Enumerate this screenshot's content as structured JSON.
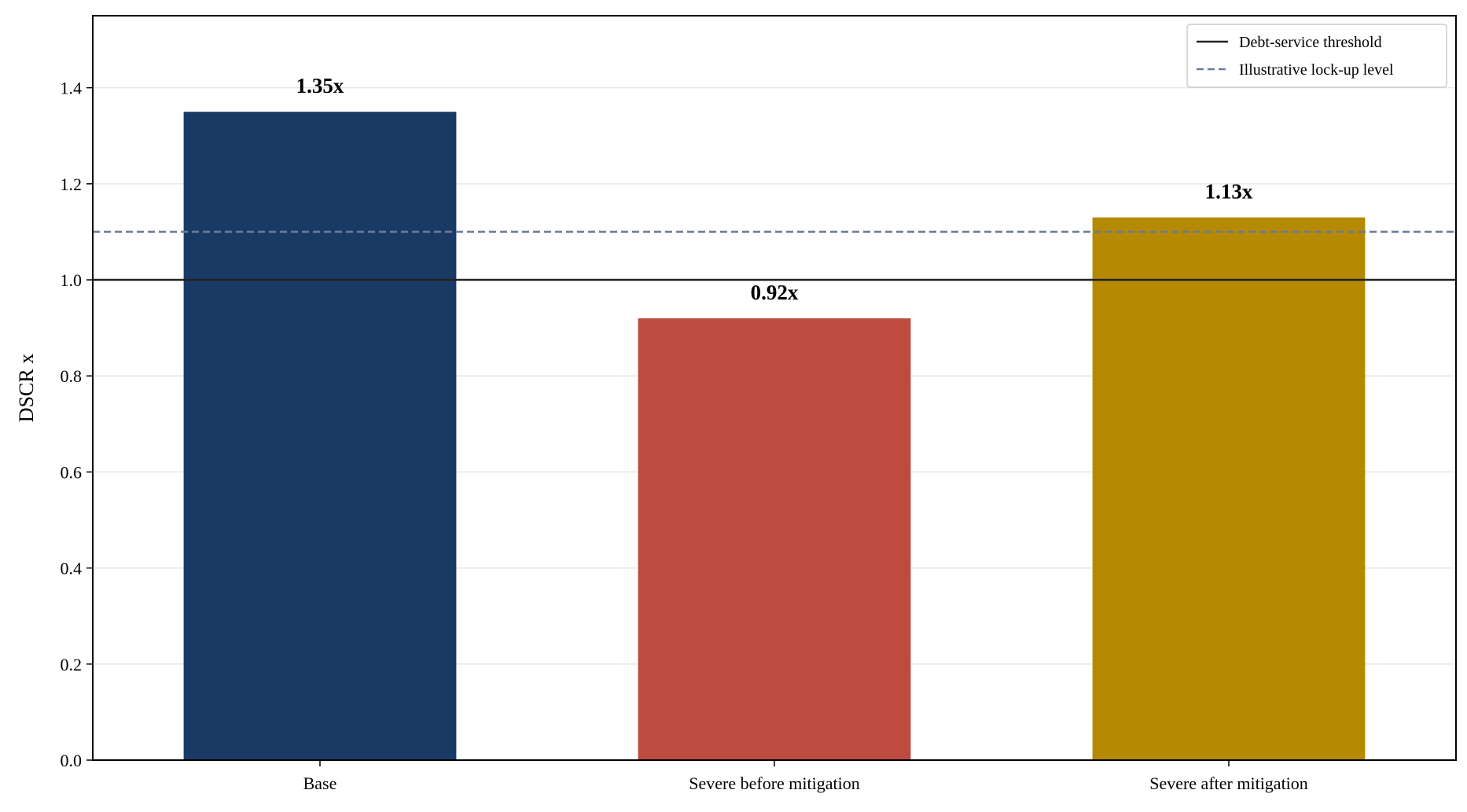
{
  "chart_data": {
    "type": "bar",
    "categories": [
      "Base",
      "Severe before mitigation",
      "Severe after mitigation"
    ],
    "values": [
      1.35,
      0.92,
      1.13
    ],
    "value_labels": [
      "1.35x",
      "0.92x",
      "1.13x"
    ],
    "bar_colors": [
      "#1a3a66",
      "#bd4b40",
      "#b58a00"
    ],
    "ylabel": "DSCR x",
    "xlabel": "",
    "title": "",
    "ylim": [
      0,
      1.55
    ],
    "yticks": [
      0.0,
      0.2,
      0.4,
      0.6,
      0.8,
      1.0,
      1.2,
      1.4
    ],
    "ytick_labels": [
      "0.0",
      "0.2",
      "0.4",
      "0.6",
      "0.8",
      "1.0",
      "1.2",
      "1.4"
    ],
    "grid": "horizontal",
    "reference_lines": [
      {
        "name": "Debt-service threshold",
        "y": 1.0,
        "style": "solid",
        "color": "#222222"
      },
      {
        "name": "Illustrative lock-up level",
        "y": 1.1,
        "style": "dashed",
        "color": "#6b7a99"
      }
    ],
    "legend": {
      "position": "top-right",
      "entries": [
        "Debt-service threshold",
        "Illustrative lock-up level"
      ]
    }
  }
}
